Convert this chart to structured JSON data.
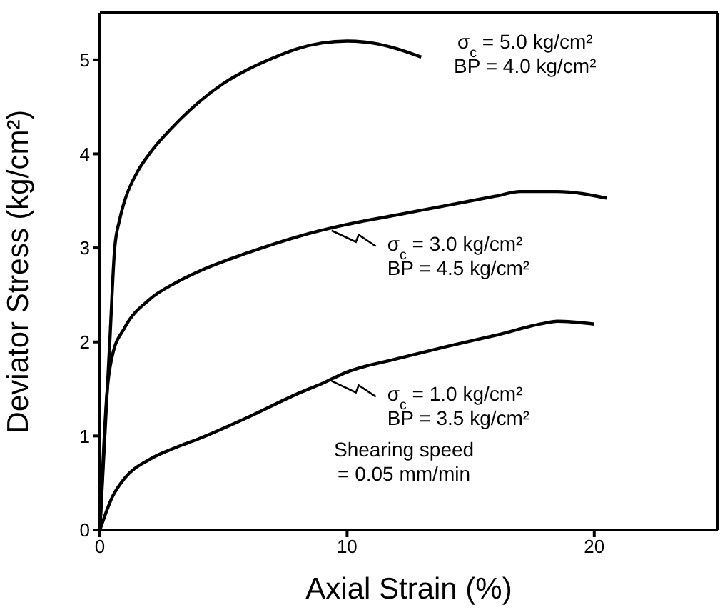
{
  "chart_data": {
    "type": "line",
    "xlabel": "Axial Strain (%)",
    "ylabel": "Deviator Stress (kg/cm²)",
    "xlim": [
      0,
      25
    ],
    "xticks": [
      0,
      10,
      20
    ],
    "ylim": [
      0,
      5.5
    ],
    "yticks": [
      0,
      1,
      2,
      3,
      4,
      5
    ],
    "marker": "none",
    "line_style": "solid",
    "series": [
      {
        "color": "#000000",
        "x": [
          0,
          0.2,
          0.4,
          0.6,
          0.8,
          1,
          1.5,
          2,
          3,
          4,
          5,
          6,
          7,
          8,
          9,
          10,
          11,
          12,
          13
        ],
        "values": [
          0,
          1,
          2,
          3,
          3.3,
          3.5,
          3.8,
          4.0,
          4.3,
          4.55,
          4.75,
          4.9,
          5.02,
          5.12,
          5.18,
          5.2,
          5.18,
          5.12,
          5.03
        ]
      },
      {
        "color": "#000000",
        "x": [
          0,
          0.3,
          0.5,
          1,
          2,
          3,
          4,
          6,
          8,
          10,
          12,
          14,
          16,
          17,
          18.5,
          20.5
        ],
        "values": [
          0,
          1.5,
          1.85,
          2.15,
          2.45,
          2.62,
          2.75,
          2.95,
          3.12,
          3.25,
          3.35,
          3.45,
          3.55,
          3.6,
          3.6,
          3.53
        ]
      },
      {
        "color": "#000000",
        "x": [
          0,
          0.5,
          1,
          2,
          3,
          4,
          6,
          8,
          9,
          10,
          12,
          14,
          16,
          18,
          18.5,
          20
        ],
        "values": [
          0,
          0.35,
          0.55,
          0.75,
          0.87,
          0.97,
          1.2,
          1.45,
          1.56,
          1.68,
          1.82,
          1.95,
          2.07,
          2.2,
          2.22,
          2.19
        ]
      }
    ],
    "annotations": [
      "σ$_{c}$ = 5.0 kg/cm²\nBP = 4.0 kg/cm²",
      {
        "text": "σ$_{c}$ = 3.0 kg/cm²\nBP = 4.5 kg/cm²",
        "x": 9.2,
        "y": 3.2
      },
      {
        "text": "σ$_{c}$ = 1.0 kg/cm²\nBP = 3.5 kg/cm²",
        "x": 9.2,
        "y": 1.6
      },
      "Shearing speed\n= 0.05 mm/min"
    ]
  }
}
